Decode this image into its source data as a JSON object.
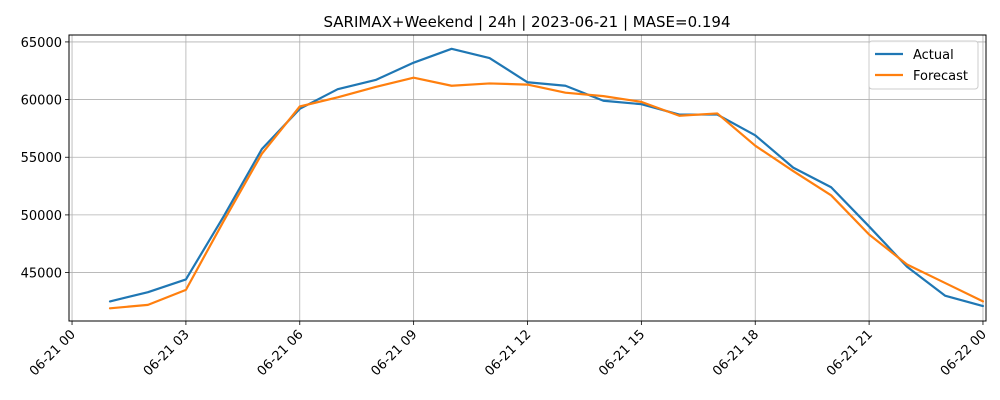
{
  "chart_data": {
    "type": "line",
    "title": "SARIMAX+Weekend | 24h | 2023-06-21 | MASE=0.194",
    "xlabel": "",
    "ylabel": "",
    "x_hours": [
      1,
      2,
      3,
      4,
      5,
      6,
      7,
      8,
      9,
      10,
      11,
      12,
      13,
      14,
      15,
      16,
      17,
      18,
      19,
      20,
      21,
      22,
      23,
      24
    ],
    "x_ticks": [
      {
        "hour": 0,
        "label": "06-21 00"
      },
      {
        "hour": 3,
        "label": "06-21 03"
      },
      {
        "hour": 6,
        "label": "06-21 06"
      },
      {
        "hour": 9,
        "label": "06-21 09"
      },
      {
        "hour": 12,
        "label": "06-21 12"
      },
      {
        "hour": 15,
        "label": "06-21 15"
      },
      {
        "hour": 18,
        "label": "06-21 18"
      },
      {
        "hour": 21,
        "label": "06-21 21"
      },
      {
        "hour": 24,
        "label": "06-22 00"
      }
    ],
    "y_ticks": [
      45000,
      50000,
      55000,
      60000,
      65000
    ],
    "xlim": [
      -0.08,
      24.08
    ],
    "ylim": [
      40800,
      65600
    ],
    "grid": true,
    "legend_position": "top-right",
    "series": [
      {
        "name": "Actual",
        "color": "#1f77b4",
        "values": [
          42500,
          43300,
          44400,
          49900,
          55700,
          59200,
          60900,
          61700,
          63200,
          64400,
          63600,
          61500,
          61200,
          59900,
          59600,
          58700,
          58700,
          56900,
          54100,
          52400,
          49000,
          45500,
          43000,
          42100
        ]
      },
      {
        "name": "Forecast",
        "color": "#ff7f0e",
        "values": [
          41900,
          42200,
          43500,
          49500,
          55300,
          59400,
          60200,
          61100,
          61900,
          61200,
          61400,
          61300,
          60600,
          60300,
          59800,
          58600,
          58800,
          56000,
          53800,
          51700,
          48300,
          45700,
          44100,
          42500
        ]
      }
    ]
  }
}
